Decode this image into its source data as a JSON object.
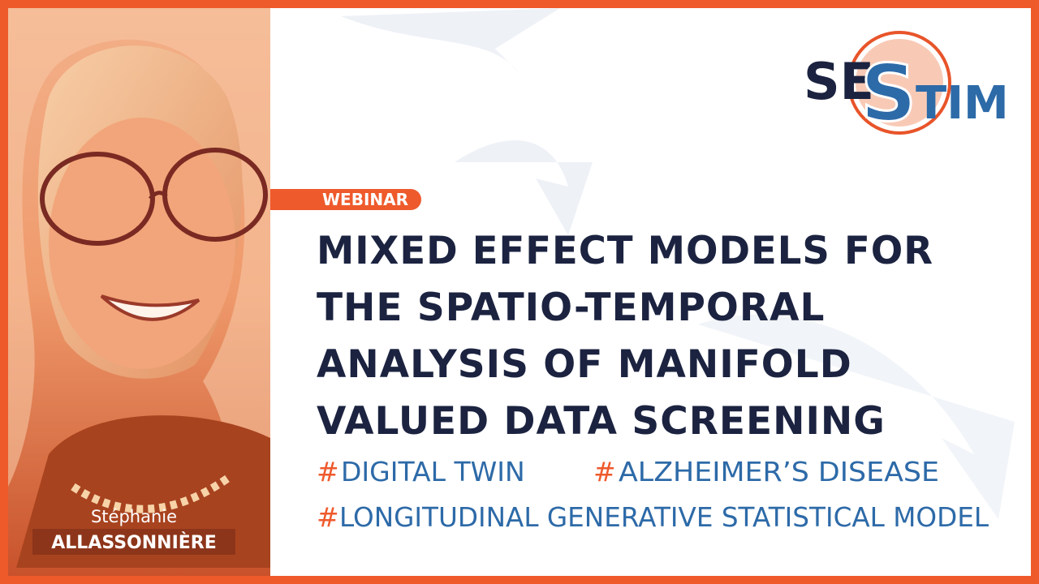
{
  "logo": {
    "part1": "SE",
    "part2": "S",
    "part3": "TIM"
  },
  "badge": "WEBINAR",
  "title_lines": [
    "MIXED EFFECT MODELS FOR",
    "THE SPATIO-TEMPORAL",
    "ANALYSIS OF MANIFOLD",
    "VALUED DATA SCREENING"
  ],
  "tags": [
    {
      "marker": "#",
      "text": "DIGITAL TWIN"
    },
    {
      "marker": "#",
      "text": "ALZHEIMER’S DISEASE"
    },
    {
      "marker": "#",
      "text": "LONGITUDINAL GENERATIVE STATISTICAL MODEL"
    }
  ],
  "speaker": {
    "first_name": "Stéphanie",
    "last_name": "ALLASSONNIÈRE"
  }
}
